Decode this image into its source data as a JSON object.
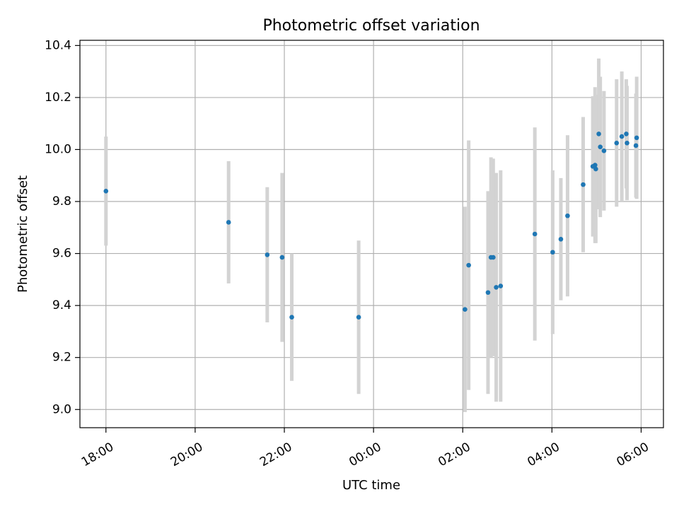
{
  "chart_data": {
    "type": "scatter",
    "title": "Photometric offset variation",
    "xlabel": "UTC time",
    "ylabel": "Photometric offset",
    "xlim": [
      "17:25",
      "06:30"
    ],
    "ylim": [
      8.93,
      10.42
    ],
    "x_ticks": [
      "18:00",
      "20:00",
      "22:00",
      "00:00",
      "02:00",
      "04:00",
      "06:00"
    ],
    "y_ticks": [
      "9.0",
      "9.2",
      "9.4",
      "9.6",
      "9.8",
      "10.0",
      "10.2",
      "10.4"
    ],
    "grid": true,
    "colors": {
      "point": "#1f77b4",
      "errorbar": "#d3d3d3",
      "grid": "#b0b0b0"
    },
    "series": [
      {
        "x": [
          "18:00",
          "20:45",
          "21:37",
          "21:57",
          "22:10",
          "23:40",
          "02:03",
          "02:08",
          "02:34",
          "02:38",
          "02:41",
          "02:45",
          "02:51",
          "03:37",
          "04:01",
          "04:12",
          "04:21",
          "04:42",
          "04:55",
          "04:58",
          "04:59",
          "05:03",
          "05:05",
          "05:10",
          "05:27",
          "05:34",
          "05:40",
          "05:41",
          "05:53",
          "05:54"
        ],
        "y": [
          9.84,
          9.72,
          9.595,
          9.585,
          9.355,
          9.355,
          9.385,
          9.555,
          9.45,
          9.585,
          9.585,
          9.47,
          9.475,
          9.675,
          9.605,
          9.655,
          9.745,
          9.865,
          9.935,
          9.94,
          9.925,
          10.06,
          10.01,
          9.995,
          10.025,
          10.05,
          10.06,
          10.025,
          10.015,
          10.045
        ],
        "error": [
          0.21,
          0.235,
          0.26,
          0.325,
          0.245,
          0.295,
          0.395,
          0.48,
          0.39,
          0.385,
          0.38,
          0.44,
          0.445,
          0.41,
          0.315,
          0.235,
          0.31,
          0.26,
          0.27,
          0.3,
          0.285,
          0.29,
          0.27,
          0.23,
          0.245,
          0.25,
          0.21,
          0.22,
          0.2,
          0.235
        ]
      }
    ]
  }
}
